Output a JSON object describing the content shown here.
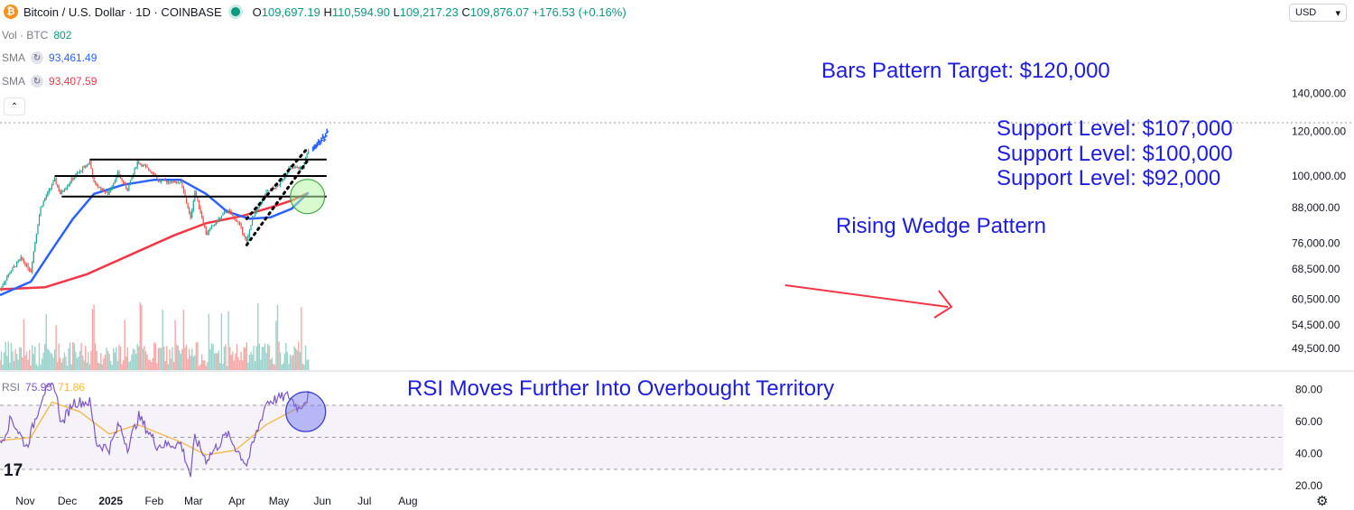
{
  "header": {
    "coin_glyph": "₿",
    "symbol": "Bitcoin / U.S. Dollar · 1D · COINBASE",
    "open_k": "O",
    "open": "109,697.19",
    "high_k": "H",
    "high": "110,594.90",
    "low_k": "L",
    "low": "109,217.23",
    "close_k": "C",
    "close": "109,876.07",
    "change": "+176.53 (+0.16%)"
  },
  "legend": {
    "vol_label": "Vol · BTC",
    "vol_value": "802",
    "sma1_label": "SMA",
    "sma1_value": "93,461.49",
    "sma2_label": "SMA",
    "sma2_value": "93,407.59",
    "rsi_label": "RSI",
    "rsi_value": "75.95",
    "rsi_ma_value": "71.86",
    "collapse_glyph": "⌃",
    "cycle_glyph": "↻"
  },
  "toolbar": {
    "currency": "USD",
    "currency_caret": "▾",
    "settings_glyph": "⚙",
    "brand_mark": "17"
  },
  "colors": {
    "up": "#26a69a",
    "down": "#ef5350",
    "sma50": "#2962ff",
    "sma200": "#f23645",
    "rsi_line": "#7e57c2",
    "rsi_ma": "#f5b73b",
    "annotation": "#1d1dde",
    "arrow": "#f23645",
    "volume_up": "#9ad3cc",
    "volume_down": "#f5a8a6"
  },
  "chart_data": {
    "type": "candlestick",
    "title": "Bitcoin / U.S. Dollar · 1D · COINBASE",
    "x_ticks": [
      "Nov",
      "Dec",
      "2025",
      "Feb",
      "Mar",
      "Apr",
      "May",
      "Jun",
      "Jul",
      "Aug"
    ],
    "y_ticks": [
      "140,000.00",
      "120,000.00",
      "100,000.00",
      "88,000.00",
      "76,000.00",
      "68,500.00",
      "60,500.00",
      "54,500.00",
      "49,500.00"
    ],
    "y_scale": "log",
    "ylim": [
      47000,
      150000
    ],
    "price_path": [
      [
        "2024-10-14",
        63000
      ],
      [
        "2024-10-21",
        67500
      ],
      [
        "2024-10-29",
        71500
      ],
      [
        "2024-11-05",
        67800
      ],
      [
        "2024-11-12",
        88000
      ],
      [
        "2024-11-22",
        98500
      ],
      [
        "2024-11-26",
        93000
      ],
      [
        "2024-12-05",
        99000
      ],
      [
        "2024-12-17",
        106000
      ],
      [
        "2024-12-20",
        97000
      ],
      [
        "2024-12-30",
        93000
      ],
      [
        "2025-01-06",
        101000
      ],
      [
        "2025-01-13",
        94500
      ],
      [
        "2025-01-20",
        106000
      ],
      [
        "2025-02-01",
        101000
      ],
      [
        "2025-02-04",
        98000
      ],
      [
        "2025-02-20",
        97500
      ],
      [
        "2025-02-27",
        84000
      ],
      [
        "2025-03-02",
        94000
      ],
      [
        "2025-03-10",
        79000
      ],
      [
        "2025-03-25",
        87000
      ],
      [
        "2025-04-03",
        82000
      ],
      [
        "2025-04-08",
        76300
      ],
      [
        "2025-04-12",
        84000
      ],
      [
        "2025-04-22",
        93500
      ],
      [
        "2025-05-01",
        96500
      ],
      [
        "2025-05-08",
        103000
      ],
      [
        "2025-05-18",
        103500
      ],
      [
        "2025-05-22",
        111000
      ]
    ],
    "series": [
      {
        "name": "SMA",
        "value": 93461.49,
        "points": [
          [
            "2024-10-14",
            61500
          ],
          [
            "2024-11-05",
            65000
          ],
          [
            "2024-11-20",
            74000
          ],
          [
            "2024-12-05",
            84000
          ],
          [
            "2024-12-20",
            93000
          ],
          [
            "2025-01-10",
            96500
          ],
          [
            "2025-02-01",
            98500
          ],
          [
            "2025-02-20",
            98500
          ],
          [
            "2025-03-10",
            93000
          ],
          [
            "2025-03-25",
            86500
          ],
          [
            "2025-04-10",
            84000
          ],
          [
            "2025-04-25",
            84500
          ],
          [
            "2025-05-10",
            87500
          ],
          [
            "2025-05-22",
            93461
          ]
        ]
      },
      {
        "name": "SMA",
        "value": 93407.59,
        "points": [
          [
            "2024-10-14",
            63000
          ],
          [
            "2024-11-15",
            63500
          ],
          [
            "2024-12-15",
            67000
          ],
          [
            "2025-01-15",
            72500
          ],
          [
            "2025-02-15",
            78500
          ],
          [
            "2025-03-10",
            82500
          ],
          [
            "2025-04-05",
            85000
          ],
          [
            "2025-04-25",
            88000
          ],
          [
            "2025-05-10",
            90500
          ],
          [
            "2025-05-22",
            93407
          ]
        ]
      }
    ],
    "rsi": {
      "yticks": [
        80,
        60,
        40,
        20
      ],
      "bands": [
        70,
        50,
        30
      ],
      "points": [
        [
          "2024-10-14",
          45
        ],
        [
          "2024-10-22",
          62
        ],
        [
          "2024-11-02",
          44
        ],
        [
          "2024-11-14",
          78
        ],
        [
          "2024-11-22",
          82
        ],
        [
          "2024-11-27",
          58
        ],
        [
          "2024-12-05",
          72
        ],
        [
          "2024-12-17",
          72
        ],
        [
          "2024-12-22",
          46
        ],
        [
          "2024-12-31",
          43
        ],
        [
          "2025-01-07",
          58
        ],
        [
          "2025-01-13",
          44
        ],
        [
          "2025-01-21",
          63
        ],
        [
          "2025-02-03",
          45
        ],
        [
          "2025-02-20",
          46
        ],
        [
          "2025-02-27",
          26
        ],
        [
          "2025-03-02",
          50
        ],
        [
          "2025-03-10",
          36
        ],
        [
          "2025-03-25",
          52
        ],
        [
          "2025-04-08",
          33
        ],
        [
          "2025-04-22",
          72
        ],
        [
          "2025-05-08",
          76
        ],
        [
          "2025-05-15",
          68
        ],
        [
          "2025-05-22",
          76
        ]
      ],
      "ma_points": [
        [
          "2024-10-14",
          48
        ],
        [
          "2024-11-05",
          50
        ],
        [
          "2024-11-20",
          72
        ],
        [
          "2024-12-10",
          66
        ],
        [
          "2024-12-31",
          52
        ],
        [
          "2025-01-20",
          58
        ],
        [
          "2025-02-20",
          47
        ],
        [
          "2025-03-10",
          39
        ],
        [
          "2025-03-31",
          42
        ],
        [
          "2025-04-22",
          58
        ],
        [
          "2025-05-22",
          71.86
        ]
      ]
    },
    "support_levels": [
      107000,
      100000,
      92000
    ],
    "projection": {
      "from": [
        "2025-05-22",
        111500
      ],
      "to": [
        "2025-06-01",
        118500
      ]
    },
    "wedge": {
      "upper": [
        [
          "2025-04-08",
          84000
        ],
        [
          "2025-05-20",
          111000
        ]
      ],
      "lower": [
        [
          "2025-04-08",
          75500
        ],
        [
          "2025-05-22",
          107000
        ]
      ]
    },
    "annotations": [
      "Bars Pattern Target: $120,000",
      "Support Level: $107,000",
      "Support Level: $100,000",
      "Support Level: $92,000",
      "Rising Wedge Pattern",
      "RSI Moves Further Into Overbought Territory"
    ]
  }
}
